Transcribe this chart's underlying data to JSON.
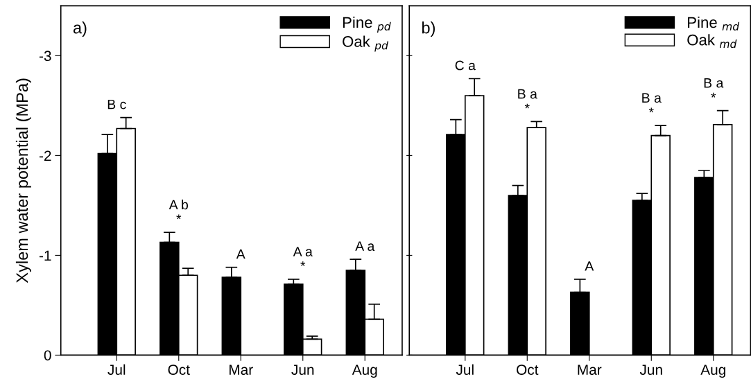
{
  "chart_data": [
    {
      "type": "bar",
      "title": "a)",
      "ylabel": "Xylem water potential (MPa)",
      "categories": [
        "Jul",
        "Oct",
        "Mar",
        "Jun",
        "Aug"
      ],
      "series": [
        {
          "name": "Pine $_{pd}$",
          "color": "#000000",
          "values": [
            -2.02,
            -1.13,
            -0.78,
            -0.71,
            -0.85
          ],
          "errors": [
            [
              -2.21,
              -2.02
            ],
            [
              -1.23,
              -1.13
            ],
            [
              -0.88,
              -0.78
            ],
            [
              -0.76,
              -0.71
            ],
            [
              -0.96,
              -0.85
            ]
          ]
        },
        {
          "name": "Oak $_{pd}$",
          "color": "#ffffff",
          "values": [
            -2.27,
            -0.8,
            null,
            -0.16,
            -0.36
          ],
          "errors": [
            [
              -2.38,
              -2.27
            ],
            [
              -0.87,
              -0.8
            ],
            null,
            [
              -0.19,
              -0.16
            ],
            [
              -0.51,
              -0.36
            ]
          ]
        }
      ],
      "ylim": [
        0,
        -3.5
      ],
      "yticks": [
        0,
        -1,
        -2,
        -3
      ],
      "legend": "top right",
      "annotations": [
        "B c",
        "A b",
        "*",
        "A",
        "A a",
        "*",
        "A a"
      ]
    },
    {
      "type": "bar",
      "title": "b)",
      "categories": [
        "Jul",
        "Oct",
        "Mar",
        "Jun",
        "Aug"
      ],
      "series": [
        {
          "name": "Pine $_{md}$",
          "color": "#000000",
          "values": [
            -2.21,
            -1.6,
            -0.63,
            -1.55,
            -1.78
          ],
          "errors": [
            [
              -2.36,
              -2.21
            ],
            [
              -1.7,
              -1.6
            ],
            [
              -0.76,
              -0.63
            ],
            [
              -1.62,
              -1.55
            ],
            [
              -1.85,
              -1.78
            ]
          ]
        },
        {
          "name": "Oak $_{md}$",
          "color": "#ffffff",
          "values": [
            -2.6,
            -2.28,
            null,
            -2.2,
            -2.31
          ],
          "errors": [
            [
              -2.77,
              -2.6
            ],
            [
              -2.34,
              -2.28
            ],
            null,
            [
              -2.3,
              -2.2
            ],
            [
              -2.45,
              -2.31
            ]
          ]
        }
      ],
      "ylim": [
        0,
        -3.5
      ],
      "yticks": [
        0,
        -1,
        -2,
        -3
      ],
      "tick_labels": "x",
      "legend": "top right",
      "annotations": [
        "C a",
        "B a",
        "*",
        "A",
        "B a",
        "*",
        "B a",
        "*"
      ]
    }
  ]
}
